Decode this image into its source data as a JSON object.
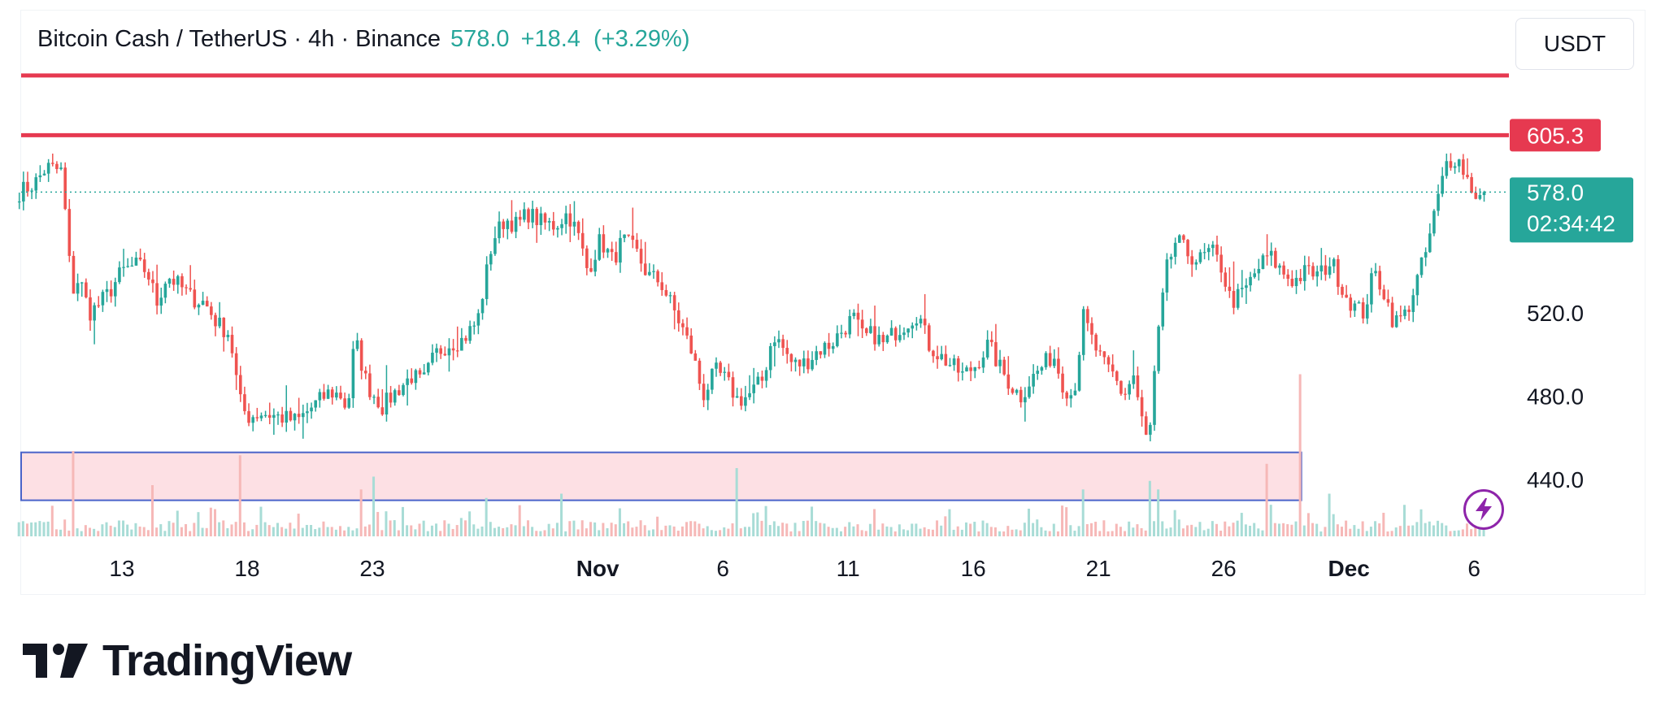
{
  "header": {
    "symbol": "Bitcoin Cash / TetherUS",
    "interval": "4h",
    "exchange": "Binance",
    "last": "578.0",
    "change": "+18.4",
    "change_pct": "(+3.29%)",
    "separator": " · "
  },
  "currency": "USDT",
  "brand": "TradingView",
  "colors": {
    "up": "#26a69a",
    "down": "#ef5350",
    "resistance": "#e63950",
    "zone_fill": "#fde0e4",
    "zone_border": "#4a63c9",
    "accent_purple": "#8e24aa"
  },
  "chart_data": {
    "type": "candlestick",
    "ylim": [
      415,
      635
    ],
    "y_ticks": [
      "440.0",
      "480.0",
      "520.0"
    ],
    "x_ticks": [
      {
        "day": 13,
        "label": "13"
      },
      {
        "day": 18,
        "label": "18"
      },
      {
        "day": 23,
        "label": "23"
      },
      {
        "day": 32,
        "label": "Nov",
        "bold": true
      },
      {
        "day": 37,
        "label": "6"
      },
      {
        "day": 42,
        "label": "11"
      },
      {
        "day": 47,
        "label": "16"
      },
      {
        "day": 52,
        "label": "21"
      },
      {
        "day": 57,
        "label": "26"
      },
      {
        "day": 62,
        "label": "Dec",
        "bold": true
      },
      {
        "day": 67,
        "label": "6"
      }
    ],
    "x_range_days": [
      8.9,
      67.4
    ],
    "last_price": {
      "value": 578.0,
      "label": "578.0",
      "countdown": "02:34:42"
    },
    "resistance_lines": [
      {
        "value": 605.3,
        "label": "605.3"
      },
      {
        "value": 634.0
      }
    ],
    "support_zone": {
      "low": 430,
      "high": 453,
      "end_day": 60.1
    },
    "anchors": [
      [
        8.9,
        578
      ],
      [
        9.5,
        582
      ],
      [
        10.0,
        590
      ],
      [
        10.6,
        588
      ],
      [
        11.0,
        530
      ],
      [
        11.3,
        537
      ],
      [
        11.7,
        520
      ],
      [
        12.0,
        523
      ],
      [
        12.5,
        530
      ],
      [
        13.0,
        540
      ],
      [
        13.6,
        543
      ],
      [
        14.0,
        540
      ],
      [
        14.4,
        525
      ],
      [
        14.8,
        538
      ],
      [
        15.3,
        533
      ],
      [
        15.8,
        527
      ],
      [
        16.3,
        525
      ],
      [
        16.8,
        515
      ],
      [
        17.3,
        510
      ],
      [
        17.7,
        478
      ],
      [
        18.0,
        470
      ],
      [
        18.6,
        472
      ],
      [
        19.3,
        470
      ],
      [
        20.0,
        468
      ],
      [
        20.7,
        476
      ],
      [
        21.3,
        482
      ],
      [
        21.8,
        480
      ],
      [
        22.0,
        472
      ],
      [
        22.3,
        508
      ],
      [
        22.8,
        485
      ],
      [
        23.4,
        475
      ],
      [
        24.0,
        483
      ],
      [
        24.6,
        490
      ],
      [
        25.0,
        486
      ],
      [
        25.5,
        500
      ],
      [
        26.0,
        505
      ],
      [
        26.6,
        507
      ],
      [
        27.2,
        516
      ],
      [
        27.8,
        555
      ],
      [
        28.3,
        565
      ],
      [
        28.8,
        562
      ],
      [
        29.2,
        568
      ],
      [
        29.8,
        563
      ],
      [
        30.3,
        562
      ],
      [
        30.8,
        568
      ],
      [
        31.2,
        558
      ],
      [
        31.6,
        540
      ],
      [
        32.1,
        555
      ],
      [
        32.6,
        545
      ],
      [
        33.0,
        555
      ],
      [
        33.5,
        550
      ],
      [
        34.0,
        538
      ],
      [
        34.5,
        535
      ],
      [
        34.9,
        525
      ],
      [
        35.4,
        512
      ],
      [
        35.8,
        500
      ],
      [
        36.2,
        480
      ],
      [
        36.7,
        492
      ],
      [
        37.1,
        488
      ],
      [
        37.6,
        478
      ],
      [
        38.0,
        480
      ],
      [
        38.6,
        488
      ],
      [
        39.0,
        510
      ],
      [
        39.4,
        503
      ],
      [
        39.8,
        495
      ],
      [
        40.3,
        496
      ],
      [
        40.8,
        502
      ],
      [
        41.3,
        505
      ],
      [
        41.8,
        512
      ],
      [
        42.2,
        518
      ],
      [
        42.6,
        508
      ],
      [
        43.0,
        510
      ],
      [
        43.4,
        505
      ],
      [
        43.8,
        510
      ],
      [
        44.3,
        515
      ],
      [
        44.8,
        520
      ],
      [
        45.2,
        505
      ],
      [
        45.6,
        500
      ],
      [
        46.1,
        495
      ],
      [
        46.6,
        490
      ],
      [
        47.1,
        495
      ],
      [
        47.6,
        505
      ],
      [
        48.0,
        495
      ],
      [
        48.5,
        485
      ],
      [
        48.9,
        480
      ],
      [
        49.3,
        488
      ],
      [
        49.8,
        495
      ],
      [
        50.2,
        500
      ],
      [
        50.6,
        485
      ],
      [
        51.0,
        480
      ],
      [
        51.4,
        518
      ],
      [
        51.8,
        505
      ],
      [
        52.2,
        495
      ],
      [
        52.6,
        490
      ],
      [
        53.0,
        480
      ],
      [
        53.4,
        490
      ],
      [
        53.7,
        470
      ],
      [
        54.0,
        455
      ],
      [
        54.3,
        500
      ],
      [
        54.7,
        540
      ],
      [
        55.1,
        555
      ],
      [
        55.6,
        548
      ],
      [
        56.0,
        545
      ],
      [
        56.5,
        550
      ],
      [
        56.9,
        542
      ],
      [
        57.3,
        525
      ],
      [
        57.8,
        530
      ],
      [
        58.3,
        540
      ],
      [
        58.8,
        548
      ],
      [
        59.3,
        540
      ],
      [
        59.8,
        535
      ],
      [
        60.3,
        540
      ],
      [
        60.8,
        538
      ],
      [
        61.3,
        545
      ],
      [
        61.8,
        530
      ],
      [
        62.2,
        523
      ],
      [
        62.6,
        520
      ],
      [
        63.0,
        540
      ],
      [
        63.4,
        530
      ],
      [
        63.8,
        515
      ],
      [
        64.3,
        520
      ],
      [
        64.7,
        535
      ],
      [
        65.1,
        550
      ],
      [
        65.5,
        572
      ],
      [
        65.9,
        592
      ],
      [
        66.3,
        595
      ],
      [
        66.6,
        588
      ],
      [
        66.9,
        580
      ],
      [
        67.2,
        575
      ],
      [
        67.4,
        578
      ]
    ],
    "volume_spikes": [
      {
        "day": 11.0,
        "v": 1.0
      },
      {
        "day": 17.7,
        "v": 0.95
      },
      {
        "day": 14.2,
        "v": 0.6
      },
      {
        "day": 23.1,
        "v": 0.7
      },
      {
        "day": 22.5,
        "v": 0.55
      },
      {
        "day": 37.6,
        "v": 0.8
      },
      {
        "day": 51.4,
        "v": 0.55
      },
      {
        "day": 54.0,
        "v": 0.65
      },
      {
        "day": 54.4,
        "v": 0.55
      },
      {
        "day": 58.8,
        "v": 0.85
      },
      {
        "day": 60.1,
        "v": 1.9
      },
      {
        "day": 61.2,
        "v": 0.5
      },
      {
        "day": 27.6,
        "v": 0.45
      },
      {
        "day": 30.6,
        "v": 0.5
      }
    ]
  }
}
